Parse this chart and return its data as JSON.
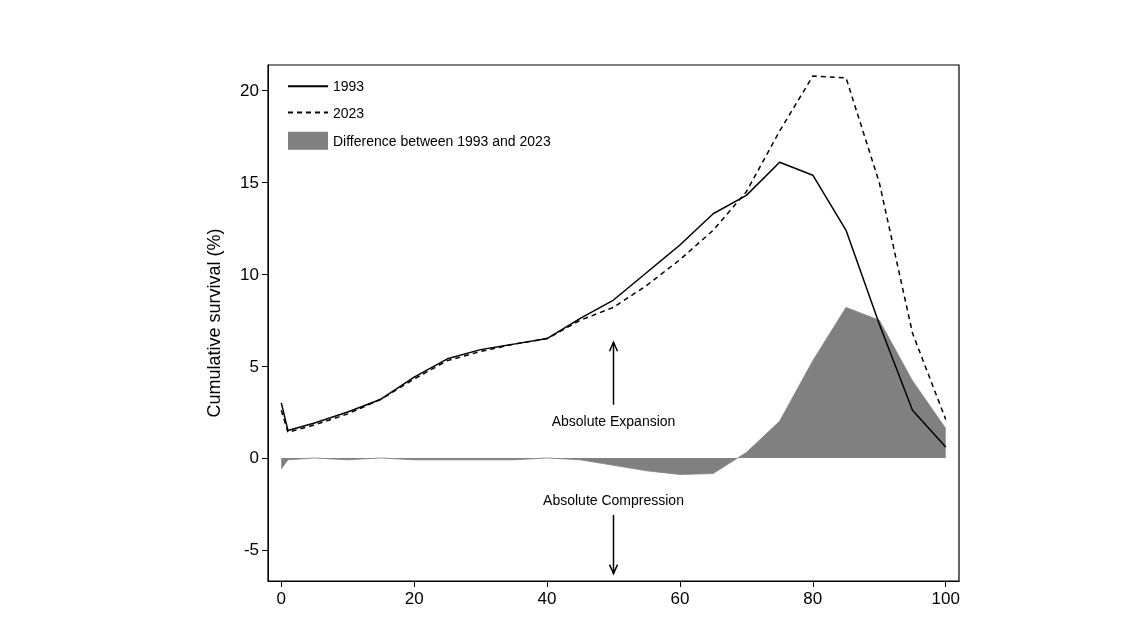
{
  "chart_data": {
    "type": "line",
    "ylabel": "Cumulative survival (%)",
    "x": [
      0,
      1,
      5,
      10,
      15,
      20,
      25,
      30,
      35,
      40,
      45,
      50,
      55,
      60,
      65,
      70,
      75,
      80,
      85,
      90,
      95,
      100
    ],
    "series": [
      {
        "name": "1993",
        "color": "#000000",
        "line_style": "solid",
        "values": [
          3.0,
          1.5,
          1.9,
          2.5,
          3.2,
          4.4,
          5.4,
          5.9,
          6.2,
          6.5,
          7.6,
          8.6,
          10.1,
          11.6,
          13.3,
          14.3,
          16.1,
          15.4,
          12.4,
          7.3,
          2.6,
          0.6
        ]
      },
      {
        "name": "2023",
        "color": "#000000",
        "line_style": "dashed",
        "values": [
          2.6,
          1.4,
          1.8,
          2.4,
          3.2,
          4.3,
          5.3,
          5.8,
          6.2,
          6.5,
          7.5,
          8.2,
          9.4,
          10.8,
          12.4,
          14.5,
          17.8,
          20.8,
          20.7,
          15.0,
          6.8,
          2.1
        ]
      },
      {
        "name": "Difference between 1993 and 2023",
        "type": "area",
        "color": "#808080",
        "values": [
          -0.6,
          -0.1,
          0,
          -0.1,
          0,
          -0.1,
          -0.1,
          -0.1,
          -0.1,
          0,
          -0.1,
          -0.4,
          -0.7,
          -0.9,
          -0.85,
          0.3,
          2.0,
          5.3,
          8.2,
          7.5,
          4.2,
          1.6
        ]
      }
    ],
    "xlim": [
      -2,
      102
    ],
    "xticks": [
      0,
      20,
      40,
      60,
      80,
      100
    ],
    "ylim": [
      -6.7,
      21.4
    ],
    "yticks": [
      -5,
      0,
      5,
      10,
      15,
      20
    ],
    "annotations": [
      "Absolute Expansion",
      "Absolute Compression"
    ],
    "grid": false,
    "marker": "none",
    "legend": "top left"
  }
}
